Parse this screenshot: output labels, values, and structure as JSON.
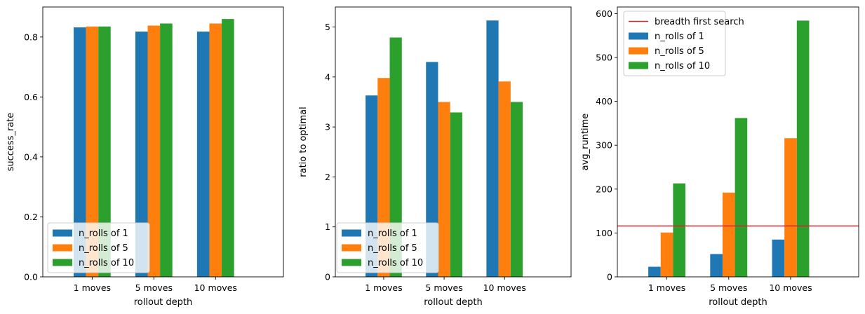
{
  "chart_data": [
    {
      "type": "bar",
      "categories": [
        "1 moves",
        "5 moves",
        "10 moves"
      ],
      "series": [
        {
          "name": "n_rolls of 1",
          "values": [
            0.832,
            0.818,
            0.818
          ]
        },
        {
          "name": "n_rolls of 5",
          "values": [
            0.835,
            0.838,
            0.845
          ]
        },
        {
          "name": "n_rolls of 10",
          "values": [
            0.835,
            0.845,
            0.86
          ]
        }
      ],
      "xlabel": "rollout depth",
      "ylabel": "success_rate",
      "ylim": [
        0,
        0.9
      ],
      "yticks": [
        0.0,
        0.2,
        0.4,
        0.6,
        0.8
      ],
      "ytick_labels": [
        "0.0",
        "0.2",
        "0.4",
        "0.6",
        "0.8"
      ],
      "legend_placement": "lower-left",
      "grid": false
    },
    {
      "type": "bar",
      "categories": [
        "1 moves",
        "5 moves",
        "10 moves"
      ],
      "series": [
        {
          "name": "n_rolls of 1",
          "values": [
            3.63,
            4.3,
            5.13
          ]
        },
        {
          "name": "n_rolls of 5",
          "values": [
            3.98,
            3.5,
            3.91
          ]
        },
        {
          "name": "n_rolls of 10",
          "values": [
            4.79,
            3.29,
            3.5
          ]
        }
      ],
      "xlabel": "rollout depth",
      "ylabel": "ratio to optimal",
      "ylim": [
        0,
        5.4
      ],
      "yticks": [
        0,
        1,
        2,
        3,
        4,
        5
      ],
      "ytick_labels": [
        "0",
        "1",
        "2",
        "3",
        "4",
        "5"
      ],
      "legend_placement": "lower-left",
      "grid": false
    },
    {
      "type": "bar",
      "categories": [
        "1 moves",
        "5 moves",
        "10 moves"
      ],
      "series": [
        {
          "name": "n_rolls of 1",
          "values": [
            23,
            52,
            85
          ]
        },
        {
          "name": "n_rolls of 5",
          "values": [
            101,
            192,
            316
          ]
        },
        {
          "name": "n_rolls of 10",
          "values": [
            213,
            362,
            584
          ]
        }
      ],
      "hline": {
        "name": "breadth first search",
        "value": 116,
        "color": "#d62728"
      },
      "xlabel": "rollout depth",
      "ylabel": "avg_runtime",
      "ylim": [
        0,
        615
      ],
      "yticks": [
        0,
        100,
        200,
        300,
        400,
        500,
        600
      ],
      "ytick_labels": [
        "0",
        "100",
        "200",
        "300",
        "400",
        "500",
        "600"
      ],
      "legend_placement": "upper-left",
      "grid": false
    }
  ],
  "colors": {
    "n_rolls of 1": "#1f77b4",
    "n_rolls of 5": "#ff7f0e",
    "n_rolls of 10": "#2ca02c",
    "breadth first search": "#d62728"
  }
}
